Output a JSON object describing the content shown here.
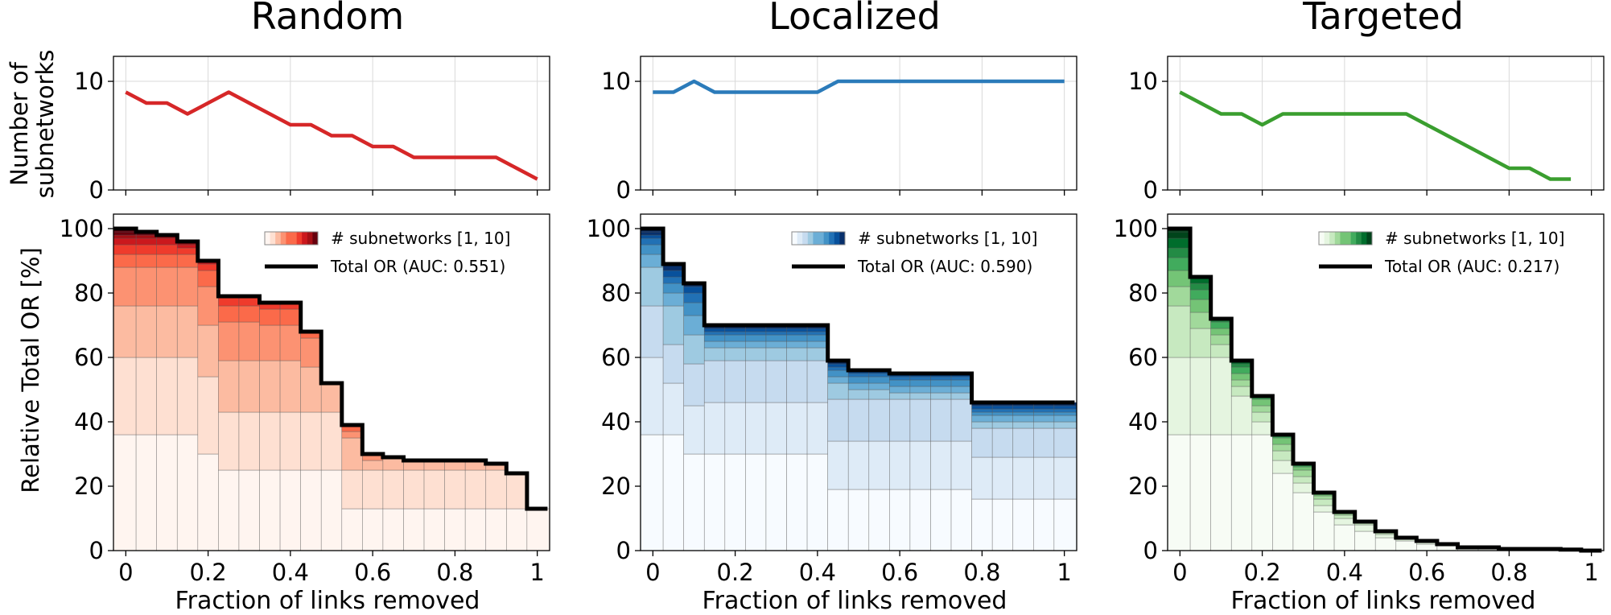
{
  "chart_data": [
    {
      "type": "line",
      "panel": "Random",
      "title": "Random",
      "ylabel": "Number of\nsubnetworks",
      "xlim": [
        -0.03,
        1.03
      ],
      "ylim": [
        0,
        12.3
      ],
      "yticks": [
        "0",
        "10"
      ],
      "series": [
        {
          "name": "Number of subnetworks",
          "color": "#d62728",
          "x": [
            0,
            0.05,
            0.1,
            0.15,
            0.2,
            0.25,
            0.3,
            0.35,
            0.4,
            0.45,
            0.5,
            0.55,
            0.6,
            0.65,
            0.7,
            0.75,
            0.8,
            0.85,
            0.9,
            0.95,
            1.0
          ],
          "y": [
            9,
            8,
            8,
            7,
            8,
            9,
            8,
            7,
            6,
            6,
            5,
            5,
            4,
            4,
            3,
            3,
            3,
            3,
            3,
            2,
            1
          ]
        }
      ]
    },
    {
      "type": "line",
      "panel": "Localized",
      "title": "Localized",
      "xlim": [
        -0.03,
        1.03
      ],
      "ylim": [
        0,
        12.3
      ],
      "yticks": [
        "0",
        "10"
      ],
      "series": [
        {
          "name": "Number of subnetworks",
          "color": "#2b7bba",
          "x": [
            0,
            0.05,
            0.1,
            0.15,
            0.2,
            0.25,
            0.3,
            0.35,
            0.4,
            0.45,
            0.5,
            0.55,
            0.6,
            0.65,
            0.7,
            0.75,
            0.8,
            0.85,
            0.9,
            0.95,
            1.0
          ],
          "y": [
            9,
            9,
            10,
            9,
            9,
            9,
            9,
            9,
            9,
            10,
            10,
            10,
            10,
            10,
            10,
            10,
            10,
            10,
            10,
            10,
            10
          ]
        }
      ]
    },
    {
      "type": "line",
      "panel": "Targeted",
      "title": "Targeted",
      "xlim": [
        -0.03,
        1.03
      ],
      "ylim": [
        0,
        12.3
      ],
      "yticks": [
        "0",
        "10"
      ],
      "series": [
        {
          "name": "Number of subnetworks",
          "color": "#3a9e2f",
          "x": [
            0,
            0.05,
            0.1,
            0.15,
            0.2,
            0.25,
            0.3,
            0.35,
            0.4,
            0.45,
            0.5,
            0.55,
            0.6,
            0.65,
            0.7,
            0.75,
            0.8,
            0.85,
            0.9,
            0.95
          ],
          "y": [
            9,
            8,
            7,
            7,
            6,
            7,
            7,
            7,
            7,
            7,
            7,
            7,
            6,
            5,
            4,
            3,
            2,
            2,
            1,
            1
          ]
        }
      ]
    },
    {
      "type": "area",
      "panel": "Random",
      "stacked": true,
      "steps": 20,
      "xlim": [
        -0.03,
        1.03
      ],
      "ylim": [
        0,
        104.5
      ],
      "xticks": [
        "0",
        "0.2",
        "0.4",
        "0.6",
        "0.8",
        "1"
      ],
      "yticks": [
        "0",
        "20",
        "40",
        "60",
        "80",
        "100"
      ],
      "xlabel": "Fraction of links removed",
      "ylabel": "Relative Total OR [%]",
      "colormap": [
        "#fff5f0",
        "#fee0d2",
        "#fcbba1",
        "#fc9272",
        "#fb6a4a",
        "#ef3b2c",
        "#cb181d",
        "#a50f15",
        "#67000d"
      ],
      "legend": {
        "colorbar": "# subnetworks [1, 10]",
        "line": "Total OR (AUC: 0.551)",
        "location": "upper right"
      },
      "total": [
        100,
        99,
        98,
        96,
        90,
        79,
        79,
        77,
        77,
        68,
        52,
        39,
        30,
        29,
        28,
        28,
        28,
        28,
        27,
        24,
        13
      ],
      "layers": [
        [
          36,
          24,
          16,
          12,
          4,
          3,
          2,
          1,
          1,
          1
        ],
        [
          36,
          24,
          16,
          12,
          4,
          3,
          2,
          1,
          1
        ],
        [
          36,
          24,
          16,
          12,
          4,
          3,
          2,
          1
        ],
        [
          36,
          24,
          16,
          12,
          4,
          2,
          1,
          1
        ],
        [
          30,
          24,
          16,
          12,
          5,
          2,
          1
        ],
        [
          25,
          18,
          16,
          12,
          5,
          3
        ],
        [
          25,
          18,
          16,
          12,
          5,
          3
        ],
        [
          25,
          18,
          16,
          11,
          5,
          2
        ],
        [
          25,
          18,
          16,
          11,
          5,
          2
        ],
        [
          25,
          18,
          14,
          9,
          2
        ],
        [
          25,
          18,
          9
        ],
        [
          13,
          12,
          10,
          2,
          2
        ],
        [
          13,
          12,
          3,
          2
        ],
        [
          13,
          12,
          4
        ],
        [
          13,
          12,
          3
        ],
        [
          13,
          12,
          3
        ],
        [
          13,
          12,
          3
        ],
        [
          13,
          12,
          3
        ],
        [
          13,
          12,
          2
        ],
        [
          13,
          11
        ],
        [
          13
        ]
      ]
    },
    {
      "type": "area",
      "panel": "Localized",
      "stacked": true,
      "steps": 20,
      "xlim": [
        -0.03,
        1.03
      ],
      "ylim": [
        0,
        104.5
      ],
      "xticks": [
        "0",
        "0.2",
        "0.4",
        "0.6",
        "0.8",
        "1"
      ],
      "yticks": [
        "0",
        "20",
        "40",
        "60",
        "80",
        "100"
      ],
      "xlabel": "Fraction of links removed",
      "colormap": [
        "#f7fbff",
        "#deebf7",
        "#c6dbef",
        "#9ecae1",
        "#6baed6",
        "#4292c6",
        "#2171b5",
        "#08519c",
        "#08306b"
      ],
      "legend": {
        "colorbar": "# subnetworks [1, 10]",
        "line": "Total OR (AUC: 0.590)",
        "location": "upper right"
      },
      "total": [
        100,
        89,
        83,
        70,
        70,
        70,
        70,
        70,
        70,
        59,
        56,
        56,
        55,
        55,
        55,
        55,
        46,
        46,
        46,
        46,
        46
      ],
      "layers": [
        [
          36,
          24,
          16,
          12,
          4,
          3,
          2,
          1,
          1,
          1
        ],
        [
          36,
          16,
          12,
          12,
          4,
          3,
          2,
          2,
          2
        ],
        [
          30,
          15,
          13,
          9,
          6,
          4,
          3,
          2,
          1
        ],
        [
          30,
          16,
          13,
          4,
          2,
          2,
          1,
          1,
          1
        ],
        [
          30,
          16,
          13,
          4,
          2,
          2,
          1,
          1,
          1
        ],
        [
          30,
          16,
          13,
          4,
          2,
          2,
          1,
          1,
          1
        ],
        [
          30,
          16,
          13,
          4,
          2,
          2,
          1,
          1,
          1
        ],
        [
          30,
          16,
          13,
          4,
          2,
          2,
          1,
          1,
          1
        ],
        [
          30,
          16,
          13,
          4,
          2,
          2,
          1,
          1,
          1
        ],
        [
          19,
          15,
          13,
          5,
          2,
          2,
          1,
          1,
          1
        ],
        [
          19,
          15,
          13,
          3,
          2,
          2,
          1,
          1
        ],
        [
          19,
          15,
          13,
          3,
          2,
          2,
          1,
          1
        ],
        [
          19,
          15,
          13,
          2,
          2,
          2,
          1,
          1
        ],
        [
          19,
          15,
          13,
          2,
          2,
          2,
          1,
          1
        ],
        [
          19,
          15,
          13,
          2,
          2,
          2,
          1,
          1
        ],
        [
          19,
          15,
          13,
          2,
          2,
          2,
          1,
          1
        ],
        [
          16,
          13,
          9,
          2,
          2,
          1,
          1,
          1,
          1
        ],
        [
          16,
          13,
          9,
          2,
          2,
          1,
          1,
          1,
          1
        ],
        [
          16,
          13,
          9,
          2,
          2,
          1,
          1,
          1,
          1
        ],
        [
          16,
          13,
          9,
          2,
          2,
          1,
          1,
          1,
          1
        ],
        [
          16,
          13,
          9,
          2,
          2,
          1,
          1,
          1,
          1
        ]
      ]
    },
    {
      "type": "area",
      "panel": "Targeted",
      "stacked": true,
      "steps": 20,
      "xlim": [
        -0.03,
        1.03
      ],
      "ylim": [
        0,
        104.5
      ],
      "xticks": [
        "0",
        "0.2",
        "0.4",
        "0.6",
        "0.8",
        "1"
      ],
      "yticks": [
        "0",
        "20",
        "40",
        "60",
        "80",
        "100"
      ],
      "xlabel": "Fraction of links removed",
      "colormap": [
        "#f7fcf5",
        "#e5f5e0",
        "#c7e9c0",
        "#a1d99b",
        "#74c476",
        "#41ab5d",
        "#238b45",
        "#006d2c",
        "#00441b"
      ],
      "legend": {
        "colorbar": "# subnetworks [1, 10]",
        "line": "Total OR (AUC: 0.217)",
        "location": "upper right"
      },
      "total": [
        100,
        85,
        72,
        59,
        48,
        36,
        27,
        18,
        12,
        9,
        6,
        4,
        3,
        2,
        1,
        1,
        0.5,
        0.5,
        0.5,
        0.3,
        0
      ],
      "layers": [
        [
          36,
          24,
          16,
          6,
          5,
          4,
          3,
          3,
          2,
          1
        ],
        [
          36,
          24,
          9,
          5,
          4,
          3,
          2,
          2
        ],
        [
          36,
          24,
          4,
          3,
          2,
          2,
          1
        ],
        [
          36,
          12,
          3,
          2,
          2,
          2,
          1,
          1
        ],
        [
          36,
          4,
          3,
          2,
          2,
          1
        ],
        [
          24,
          4,
          3,
          2,
          2,
          1
        ],
        [
          18,
          3,
          2,
          2,
          1,
          1
        ],
        [
          12,
          2,
          2,
          1,
          1
        ],
        [
          8,
          2,
          1,
          1
        ],
        [
          6,
          2,
          1
        ],
        [
          4,
          1,
          1
        ],
        [
          3,
          1
        ],
        [
          2,
          1
        ],
        [
          1.5,
          0.5
        ],
        [
          1
        ],
        [
          1
        ],
        [
          0.5
        ],
        [
          0.5
        ],
        [
          0.5
        ],
        [
          0.3
        ],
        [
          0
        ]
      ]
    }
  ]
}
